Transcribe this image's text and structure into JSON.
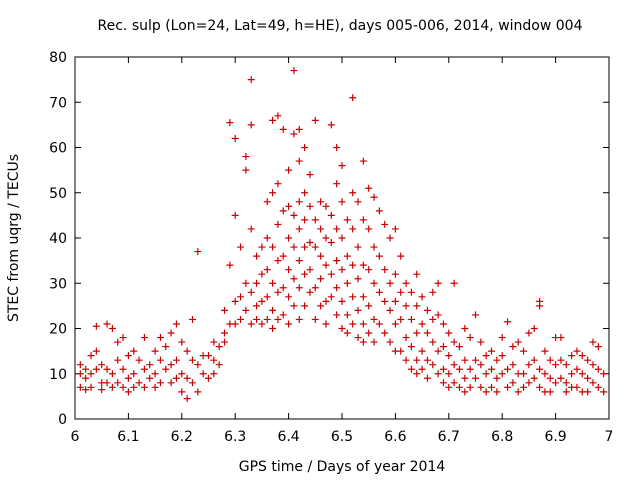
{
  "chart_data": {
    "type": "scatter",
    "title": "Rec. sulp (Lon=24, Lat=49, h=HE), days 005-006, 2014, window 004",
    "xlabel": "GPS time / Days of year 2014",
    "ylabel": "STEC from uqrg / TECUs",
    "xlim": [
      6,
      7
    ],
    "ylim": [
      0,
      80
    ],
    "x_ticks": [
      "6",
      "6.1",
      "6.2",
      "6.3",
      "6.4",
      "6.5",
      "6.6",
      "6.7",
      "6.8",
      "6.9",
      "7"
    ],
    "y_ticks": [
      "0",
      "10",
      "20",
      "30",
      "40",
      "50",
      "60",
      "70",
      "80"
    ],
    "marker": "+",
    "color": "#cc0000",
    "grid": false,
    "points": [
      [
        6.01,
        12
      ],
      [
        6.01,
        10
      ],
      [
        6.01,
        7
      ],
      [
        6.02,
        11
      ],
      [
        6.02,
        9
      ],
      [
        6.02,
        6.5
      ],
      [
        6.03,
        14
      ],
      [
        6.03,
        10
      ],
      [
        6.03,
        7
      ],
      [
        6.04,
        15
      ],
      [
        6.04,
        11
      ],
      [
        6.04,
        20.5
      ],
      [
        6.05,
        8
      ],
      [
        6.05,
        12
      ],
      [
        6.05,
        6.5
      ],
      [
        6.06,
        21
      ],
      [
        6.06,
        8
      ],
      [
        6.06,
        11
      ],
      [
        6.07,
        20
      ],
      [
        6.07,
        10
      ],
      [
        6.07,
        7
      ],
      [
        6.08,
        17
      ],
      [
        6.08,
        13
      ],
      [
        6.08,
        8
      ],
      [
        6.09,
        18
      ],
      [
        6.09,
        11
      ],
      [
        6.09,
        7
      ],
      [
        6.1,
        14
      ],
      [
        6.1,
        9
      ],
      [
        6.1,
        6
      ],
      [
        6.11,
        15
      ],
      [
        6.11,
        10
      ],
      [
        6.11,
        7
      ],
      [
        6.12,
        13
      ],
      [
        6.12,
        8
      ],
      [
        6.13,
        18
      ],
      [
        6.13,
        11
      ],
      [
        6.13,
        7
      ],
      [
        6.14,
        12
      ],
      [
        6.14,
        9
      ],
      [
        6.15,
        15
      ],
      [
        6.15,
        10
      ],
      [
        6.15,
        7
      ],
      [
        6.16,
        18
      ],
      [
        6.16,
        13
      ],
      [
        6.16,
        8
      ],
      [
        6.17,
        16
      ],
      [
        6.17,
        11
      ],
      [
        6.18,
        19
      ],
      [
        6.18,
        12
      ],
      [
        6.18,
        8
      ],
      [
        6.19,
        21
      ],
      [
        6.19,
        13
      ],
      [
        6.19,
        9
      ],
      [
        6.2,
        17
      ],
      [
        6.2,
        10
      ],
      [
        6.2,
        6
      ],
      [
        6.21,
        15
      ],
      [
        6.21,
        9
      ],
      [
        6.21,
        4.5
      ],
      [
        6.22,
        22
      ],
      [
        6.22,
        13
      ],
      [
        6.22,
        8
      ],
      [
        6.23,
        37
      ],
      [
        6.23,
        12
      ],
      [
        6.23,
        6
      ],
      [
        6.24,
        14
      ],
      [
        6.24,
        10
      ],
      [
        6.25,
        14
      ],
      [
        6.25,
        9
      ],
      [
        6.26,
        17
      ],
      [
        6.26,
        13
      ],
      [
        6.26,
        10
      ],
      [
        6.27,
        16
      ],
      [
        6.27,
        12
      ],
      [
        6.28,
        24
      ],
      [
        6.28,
        19
      ],
      [
        6.28,
        17
      ],
      [
        6.29,
        34
      ],
      [
        6.29,
        65.5
      ],
      [
        6.29,
        21
      ],
      [
        6.3,
        45
      ],
      [
        6.3,
        62
      ],
      [
        6.3,
        26
      ],
      [
        6.3,
        21
      ],
      [
        6.31,
        38
      ],
      [
        6.31,
        27
      ],
      [
        6.31,
        22
      ],
      [
        6.32,
        58
      ],
      [
        6.32,
        55
      ],
      [
        6.32,
        30
      ],
      [
        6.32,
        24
      ],
      [
        6.33,
        75
      ],
      [
        6.33,
        65
      ],
      [
        6.33,
        42
      ],
      [
        6.33,
        28
      ],
      [
        6.33,
        21
      ],
      [
        6.34,
        36
      ],
      [
        6.34,
        30
      ],
      [
        6.34,
        25
      ],
      [
        6.34,
        22
      ],
      [
        6.35,
        38
      ],
      [
        6.35,
        32
      ],
      [
        6.35,
        26
      ],
      [
        6.35,
        21
      ],
      [
        6.36,
        48
      ],
      [
        6.36,
        40
      ],
      [
        6.36,
        33
      ],
      [
        6.36,
        27
      ],
      [
        6.36,
        22
      ],
      [
        6.37,
        66
      ],
      [
        6.37,
        50
      ],
      [
        6.37,
        38
      ],
      [
        6.37,
        30
      ],
      [
        6.37,
        24
      ],
      [
        6.37,
        20
      ],
      [
        6.38,
        67
      ],
      [
        6.38,
        52
      ],
      [
        6.38,
        43
      ],
      [
        6.38,
        35
      ],
      [
        6.38,
        28
      ],
      [
        6.38,
        22
      ],
      [
        6.39,
        64
      ],
      [
        6.39,
        46
      ],
      [
        6.39,
        36
      ],
      [
        6.39,
        29
      ],
      [
        6.39,
        23
      ],
      [
        6.4,
        55
      ],
      [
        6.4,
        47
      ],
      [
        6.4,
        40
      ],
      [
        6.4,
        33
      ],
      [
        6.4,
        27
      ],
      [
        6.4,
        21
      ],
      [
        6.41,
        77
      ],
      [
        6.41,
        63
      ],
      [
        6.41,
        45
      ],
      [
        6.41,
        38
      ],
      [
        6.41,
        31
      ],
      [
        6.41,
        25
      ],
      [
        6.42,
        64
      ],
      [
        6.42,
        57
      ],
      [
        6.42,
        48
      ],
      [
        6.42,
        42
      ],
      [
        6.42,
        35
      ],
      [
        6.42,
        29
      ],
      [
        6.42,
        22
      ],
      [
        6.43,
        60
      ],
      [
        6.43,
        50
      ],
      [
        6.43,
        44
      ],
      [
        6.43,
        38
      ],
      [
        6.43,
        32
      ],
      [
        6.43,
        25
      ],
      [
        6.44,
        54
      ],
      [
        6.44,
        47
      ],
      [
        6.44,
        39
      ],
      [
        6.44,
        33
      ],
      [
        6.44,
        28
      ],
      [
        6.45,
        66
      ],
      [
        6.45,
        44
      ],
      [
        6.45,
        38
      ],
      [
        6.45,
        29
      ],
      [
        6.45,
        22
      ],
      [
        6.46,
        48
      ],
      [
        6.46,
        42
      ],
      [
        6.46,
        36
      ],
      [
        6.46,
        31
      ],
      [
        6.46,
        25
      ],
      [
        6.47,
        47
      ],
      [
        6.47,
        40
      ],
      [
        6.47,
        34
      ],
      [
        6.47,
        26
      ],
      [
        6.47,
        21
      ],
      [
        6.48,
        65
      ],
      [
        6.48,
        45
      ],
      [
        6.48,
        39
      ],
      [
        6.48,
        32
      ],
      [
        6.48,
        27
      ],
      [
        6.49,
        60
      ],
      [
        6.49,
        52
      ],
      [
        6.49,
        42
      ],
      [
        6.49,
        35
      ],
      [
        6.49,
        29
      ],
      [
        6.49,
        23
      ],
      [
        6.5,
        56
      ],
      [
        6.5,
        48
      ],
      [
        6.5,
        40
      ],
      [
        6.5,
        33
      ],
      [
        6.5,
        26
      ],
      [
        6.5,
        20
      ],
      [
        6.51,
        44
      ],
      [
        6.51,
        36
      ],
      [
        6.51,
        30
      ],
      [
        6.51,
        23
      ],
      [
        6.51,
        19
      ],
      [
        6.52,
        71
      ],
      [
        6.52,
        50
      ],
      [
        6.52,
        42
      ],
      [
        6.52,
        34
      ],
      [
        6.52,
        27
      ],
      [
        6.52,
        21
      ],
      [
        6.53,
        48
      ],
      [
        6.53,
        38
      ],
      [
        6.53,
        31
      ],
      [
        6.53,
        24
      ],
      [
        6.53,
        18
      ],
      [
        6.54,
        57
      ],
      [
        6.54,
        44
      ],
      [
        6.54,
        34
      ],
      [
        6.54,
        27
      ],
      [
        6.54,
        21
      ],
      [
        6.54,
        17
      ],
      [
        6.55,
        51
      ],
      [
        6.55,
        42
      ],
      [
        6.55,
        33
      ],
      [
        6.55,
        25
      ],
      [
        6.55,
        19
      ],
      [
        6.56,
        49
      ],
      [
        6.56,
        38
      ],
      [
        6.56,
        30
      ],
      [
        6.56,
        22
      ],
      [
        6.56,
        17
      ],
      [
        6.57,
        46
      ],
      [
        6.57,
        36
      ],
      [
        6.57,
        28
      ],
      [
        6.57,
        21
      ],
      [
        6.58,
        43
      ],
      [
        6.58,
        33
      ],
      [
        6.58,
        26
      ],
      [
        6.58,
        19
      ],
      [
        6.59,
        40
      ],
      [
        6.59,
        30
      ],
      [
        6.59,
        24
      ],
      [
        6.59,
        17
      ],
      [
        6.6,
        42
      ],
      [
        6.6,
        32
      ],
      [
        6.6,
        26
      ],
      [
        6.6,
        21
      ],
      [
        6.6,
        15
      ],
      [
        6.61,
        36
      ],
      [
        6.61,
        28
      ],
      [
        6.61,
        22
      ],
      [
        6.61,
        15
      ],
      [
        6.62,
        30
      ],
      [
        6.62,
        25
      ],
      [
        6.62,
        18
      ],
      [
        6.62,
        13
      ],
      [
        6.63,
        28
      ],
      [
        6.63,
        22
      ],
      [
        6.63,
        16
      ],
      [
        6.63,
        11
      ],
      [
        6.64,
        32
      ],
      [
        6.64,
        25
      ],
      [
        6.64,
        19
      ],
      [
        6.64,
        13
      ],
      [
        6.64,
        10
      ],
      [
        6.65,
        27
      ],
      [
        6.65,
        21
      ],
      [
        6.65,
        15
      ],
      [
        6.65,
        11
      ],
      [
        6.66,
        24
      ],
      [
        6.66,
        19
      ],
      [
        6.66,
        13
      ],
      [
        6.66,
        9
      ],
      [
        6.67,
        28
      ],
      [
        6.67,
        22
      ],
      [
        6.67,
        17
      ],
      [
        6.67,
        12
      ],
      [
        6.68,
        30
      ],
      [
        6.68,
        23
      ],
      [
        6.68,
        15
      ],
      [
        6.68,
        10
      ],
      [
        6.69,
        21
      ],
      [
        6.69,
        16
      ],
      [
        6.69,
        11
      ],
      [
        6.69,
        8
      ],
      [
        6.7,
        19
      ],
      [
        6.7,
        14
      ],
      [
        6.7,
        10
      ],
      [
        6.7,
        7
      ],
      [
        6.71,
        30
      ],
      [
        6.71,
        17
      ],
      [
        6.71,
        12
      ],
      [
        6.71,
        8
      ],
      [
        6.72,
        16
      ],
      [
        6.72,
        11
      ],
      [
        6.72,
        7
      ],
      [
        6.73,
        20
      ],
      [
        6.73,
        13
      ],
      [
        6.73,
        9
      ],
      [
        6.73,
        6
      ],
      [
        6.74,
        18
      ],
      [
        6.74,
        11
      ],
      [
        6.74,
        7
      ],
      [
        6.75,
        23
      ],
      [
        6.75,
        13
      ],
      [
        6.75,
        9
      ],
      [
        6.76,
        17
      ],
      [
        6.76,
        12
      ],
      [
        6.76,
        7
      ],
      [
        6.77,
        14
      ],
      [
        6.77,
        10
      ],
      [
        6.77,
        6
      ],
      [
        6.78,
        15
      ],
      [
        6.78,
        11
      ],
      [
        6.78,
        7
      ],
      [
        6.79,
        13
      ],
      [
        6.79,
        9
      ],
      [
        6.79,
        6
      ],
      [
        6.8,
        18
      ],
      [
        6.8,
        14
      ],
      [
        6.8,
        10
      ],
      [
        6.81,
        21.5
      ],
      [
        6.81,
        11
      ],
      [
        6.81,
        7
      ],
      [
        6.82,
        16
      ],
      [
        6.82,
        12
      ],
      [
        6.82,
        8
      ],
      [
        6.83,
        17
      ],
      [
        6.83,
        10
      ],
      [
        6.83,
        6
      ],
      [
        6.84,
        15
      ],
      [
        6.84,
        10
      ],
      [
        6.84,
        7
      ],
      [
        6.85,
        19
      ],
      [
        6.85,
        12
      ],
      [
        6.85,
        8
      ],
      [
        6.86,
        20
      ],
      [
        6.86,
        13
      ],
      [
        6.86,
        9
      ],
      [
        6.87,
        25
      ],
      [
        6.87,
        26
      ],
      [
        6.87,
        11
      ],
      [
        6.87,
        7
      ],
      [
        6.88,
        15
      ],
      [
        6.88,
        10
      ],
      [
        6.88,
        6
      ],
      [
        6.89,
        13
      ],
      [
        6.89,
        9
      ],
      [
        6.89,
        6
      ],
      [
        6.9,
        18
      ],
      [
        6.9,
        12
      ],
      [
        6.9,
        8
      ],
      [
        6.91,
        18
      ],
      [
        6.91,
        13
      ],
      [
        6.91,
        9
      ],
      [
        6.92,
        12
      ],
      [
        6.92,
        8
      ],
      [
        6.92,
        6
      ],
      [
        6.93,
        14
      ],
      [
        6.93,
        10
      ],
      [
        6.93,
        7
      ],
      [
        6.94,
        15
      ],
      [
        6.94,
        11
      ],
      [
        6.94,
        7
      ],
      [
        6.95,
        14
      ],
      [
        6.95,
        10
      ],
      [
        6.95,
        6
      ],
      [
        6.96,
        13
      ],
      [
        6.96,
        9
      ],
      [
        6.96,
        6
      ],
      [
        6.97,
        17
      ],
      [
        6.97,
        12
      ],
      [
        6.97,
        8
      ],
      [
        6.98,
        16
      ],
      [
        6.98,
        11
      ],
      [
        6.98,
        7
      ],
      [
        6.99,
        10
      ],
      [
        6.99,
        6
      ]
    ]
  }
}
